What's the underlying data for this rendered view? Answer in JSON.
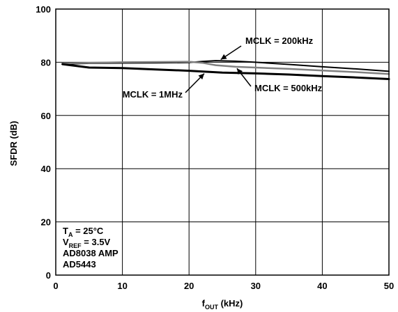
{
  "chart_data": {
    "type": "line",
    "xlabel": {
      "main": "f",
      "sub": "OUT",
      "rest": " (kHz)"
    },
    "ylabel": "SFDR (dB)",
    "xlim": [
      0,
      50
    ],
    "ylim": [
      0,
      100
    ],
    "xticks": [
      0,
      10,
      20,
      30,
      40,
      50
    ],
    "yticks": [
      0,
      20,
      40,
      60,
      80,
      100
    ],
    "grid": true,
    "series": [
      {
        "name": "MCLK = 200kHz",
        "color": "#000000",
        "x": [
          1,
          5,
          10,
          15,
          20,
          22,
          24,
          27,
          30,
          35,
          40,
          45,
          50
        ],
        "y": [
          79.3,
          79.6,
          79.7,
          79.8,
          79.9,
          80.3,
          80.6,
          80.4,
          80.0,
          79.2,
          78.3,
          77.5,
          76.6
        ]
      },
      {
        "name": "MCLK = 500kHz",
        "color": "#808080",
        "x": [
          1,
          5,
          10,
          15,
          20,
          22,
          24,
          27,
          30,
          35,
          40,
          45,
          50
        ],
        "y": [
          79.6,
          79.8,
          80.0,
          80.1,
          80.2,
          79.8,
          78.9,
          78.3,
          78.0,
          77.5,
          76.9,
          76.3,
          75.6
        ]
      },
      {
        "name": "MCLK = 1MHz",
        "color": "#000000",
        "x": [
          1,
          5,
          10,
          15,
          20,
          25,
          30,
          35,
          40,
          45,
          50
        ],
        "y": [
          79.3,
          78.0,
          77.8,
          77.3,
          76.8,
          76.1,
          75.8,
          75.4,
          74.8,
          74.3,
          73.7
        ]
      }
    ],
    "annotations": [
      {
        "text": "MCLK = 200kHz",
        "series": 0,
        "x": 24.5,
        "y": 80.6
      },
      {
        "text": "MCLK = 500kHz",
        "series": 1,
        "x": 27,
        "y": 78.3
      },
      {
        "text": "MCLK = 1MHz",
        "series": 2,
        "x": 22.5,
        "y": 76.3
      }
    ],
    "conditions": [
      {
        "main": "T",
        "sub": "A",
        "rest": " = 25°C"
      },
      {
        "main": "V",
        "sub": "REF",
        "rest": " = 3.5V"
      },
      {
        "main": "AD8038 AMP",
        "sub": "",
        "rest": ""
      },
      {
        "main": "AD5443",
        "sub": "",
        "rest": ""
      }
    ]
  }
}
